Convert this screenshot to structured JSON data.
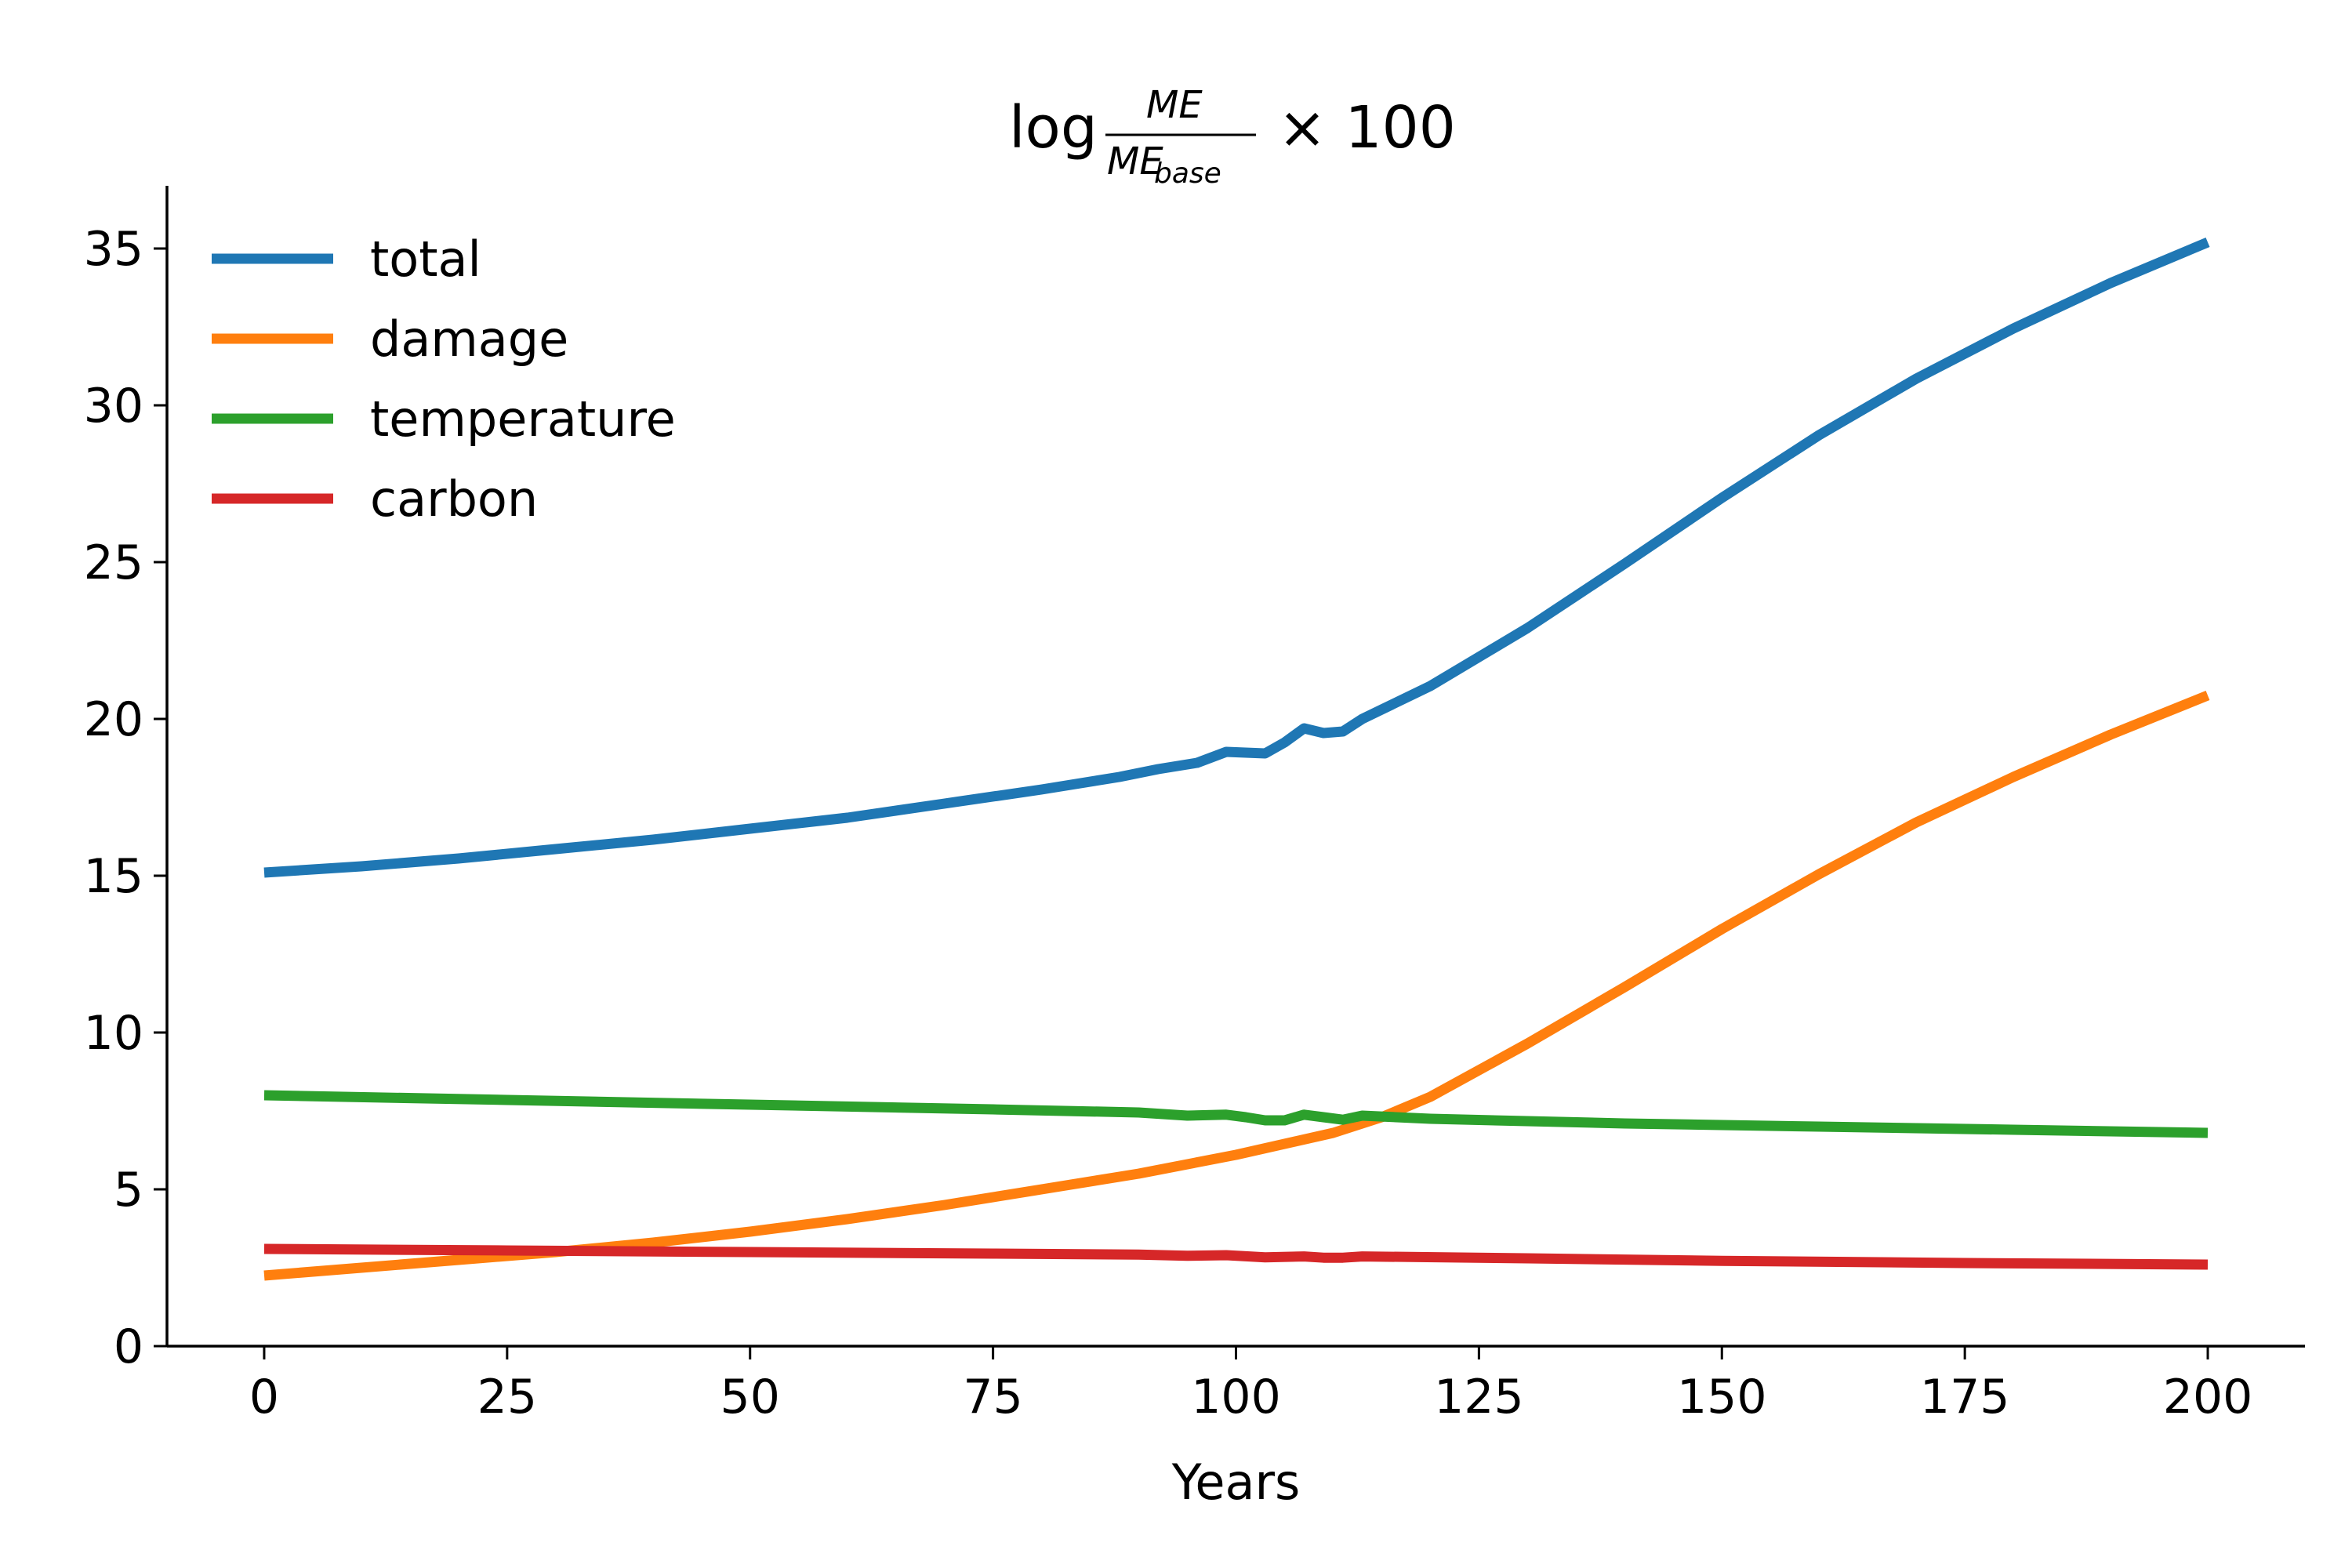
{
  "chart_data": {
    "type": "line",
    "title": {
      "prefix": "log",
      "numerator": "ME",
      "denominator": "ME",
      "denominator_subscript": "base",
      "suffix": "× 100"
    },
    "xlabel": "Years",
    "ylabel": "",
    "xlim": [
      -10,
      210
    ],
    "ylim": [
      0,
      37
    ],
    "xticks": [
      0,
      25,
      50,
      75,
      100,
      125,
      150,
      175,
      200
    ],
    "yticks": [
      0,
      5,
      10,
      15,
      20,
      25,
      30,
      35
    ],
    "grid": false,
    "legend_position": "top-left",
    "series": [
      {
        "name": "total",
        "color": "#1f77b4",
        "points": [
          [
            0,
            15.1
          ],
          [
            10,
            15.3
          ],
          [
            20,
            15.55
          ],
          [
            30,
            15.85
          ],
          [
            40,
            16.15
          ],
          [
            50,
            16.5
          ],
          [
            60,
            16.85
          ],
          [
            70,
            17.3
          ],
          [
            80,
            17.75
          ],
          [
            88,
            18.15
          ],
          [
            92,
            18.4
          ],
          [
            96,
            18.6
          ],
          [
            99,
            18.95
          ],
          [
            103,
            18.9
          ],
          [
            105,
            19.25
          ],
          [
            107,
            19.7
          ],
          [
            109,
            19.55
          ],
          [
            111,
            19.6
          ],
          [
            113,
            20.0
          ],
          [
            115,
            20.3
          ],
          [
            120,
            21.05
          ],
          [
            130,
            22.9
          ],
          [
            140,
            24.95
          ],
          [
            150,
            27.05
          ],
          [
            160,
            29.05
          ],
          [
            170,
            30.85
          ],
          [
            180,
            32.45
          ],
          [
            190,
            33.9
          ],
          [
            200,
            35.2
          ]
        ]
      },
      {
        "name": "damage",
        "color": "#ff7f0e",
        "points": [
          [
            0,
            2.25
          ],
          [
            10,
            2.5
          ],
          [
            20,
            2.75
          ],
          [
            30,
            3.0
          ],
          [
            40,
            3.3
          ],
          [
            50,
            3.65
          ],
          [
            60,
            4.05
          ],
          [
            70,
            4.5
          ],
          [
            80,
            5.0
          ],
          [
            90,
            5.5
          ],
          [
            100,
            6.1
          ],
          [
            105,
            6.45
          ],
          [
            110,
            6.8
          ],
          [
            115,
            7.3
          ],
          [
            120,
            7.95
          ],
          [
            130,
            9.65
          ],
          [
            140,
            11.45
          ],
          [
            150,
            13.3
          ],
          [
            160,
            15.05
          ],
          [
            170,
            16.7
          ],
          [
            180,
            18.15
          ],
          [
            190,
            19.5
          ],
          [
            200,
            20.75
          ]
        ]
      },
      {
        "name": "temperature",
        "color": "#2ca02c",
        "points": [
          [
            0,
            8.0
          ],
          [
            25,
            7.85
          ],
          [
            50,
            7.7
          ],
          [
            75,
            7.55
          ],
          [
            90,
            7.45
          ],
          [
            95,
            7.35
          ],
          [
            99,
            7.38
          ],
          [
            101,
            7.3
          ],
          [
            103,
            7.2
          ],
          [
            105,
            7.2
          ],
          [
            107,
            7.38
          ],
          [
            109,
            7.3
          ],
          [
            111,
            7.22
          ],
          [
            113,
            7.35
          ],
          [
            120,
            7.25
          ],
          [
            140,
            7.1
          ],
          [
            160,
            7.0
          ],
          [
            180,
            6.9
          ],
          [
            200,
            6.8
          ]
        ]
      },
      {
        "name": "carbon",
        "color": "#d62728",
        "points": [
          [
            0,
            3.1
          ],
          [
            25,
            3.05
          ],
          [
            50,
            3.0
          ],
          [
            75,
            2.95
          ],
          [
            90,
            2.92
          ],
          [
            95,
            2.88
          ],
          [
            99,
            2.9
          ],
          [
            103,
            2.83
          ],
          [
            107,
            2.86
          ],
          [
            109,
            2.82
          ],
          [
            111,
            2.82
          ],
          [
            113,
            2.86
          ],
          [
            130,
            2.8
          ],
          [
            150,
            2.72
          ],
          [
            175,
            2.65
          ],
          [
            200,
            2.6
          ]
        ]
      }
    ]
  }
}
